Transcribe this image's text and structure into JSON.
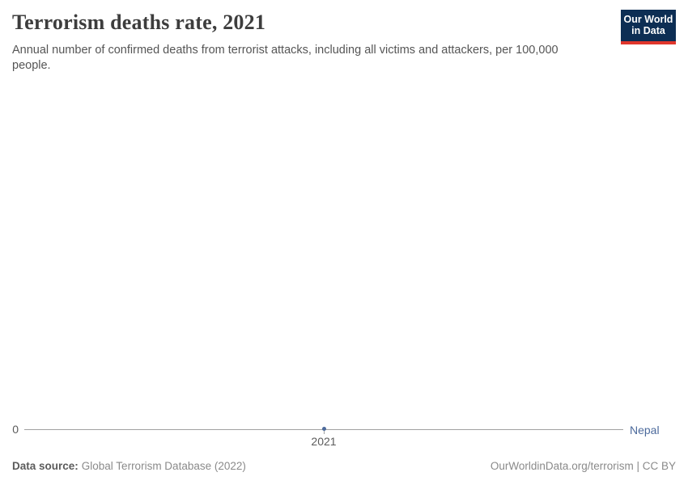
{
  "header": {
    "title": "Terrorism deaths rate, 2021",
    "subtitle": "Annual number of confirmed deaths from terrorist attacks, including all victims and attackers, per 100,000 people.",
    "logo": {
      "line1": "Our World",
      "line2": "in Data"
    }
  },
  "chart": {
    "y_zero_label": "0",
    "x_tick_label": "2021",
    "entity_label": "Nepal"
  },
  "chart_data": {
    "type": "line",
    "title": "Terrorism deaths rate, 2021",
    "subtitle": "Annual number of confirmed deaths from terrorist attacks, including all victims and attackers, per 100,000 people.",
    "series": [
      {
        "name": "Nepal",
        "x": [
          2021
        ],
        "values": [
          0
        ]
      }
    ],
    "x_ticks": [
      "2021"
    ],
    "y_ticks": [
      0
    ],
    "ylim": [
      0,
      0
    ],
    "xlabel": "",
    "ylabel": "",
    "grid": false,
    "legend_position": "right-of-line"
  },
  "footer": {
    "source_label": "Data source:",
    "source_value": "Global Terrorism Database (2022)",
    "url": "OurWorldinData.org/terrorism",
    "divider": " | ",
    "license": "CC BY"
  },
  "colors": {
    "accent": "#4c6a9c",
    "logo-bg": "#0d2e54",
    "logo-red": "#e0362c",
    "axis-line": "#a1a1a1",
    "title-text": "#3d3d3d",
    "subtitle-text": "#555555",
    "tick-text": "#5b5b5b",
    "footer-text": "#8a8a8a"
  }
}
